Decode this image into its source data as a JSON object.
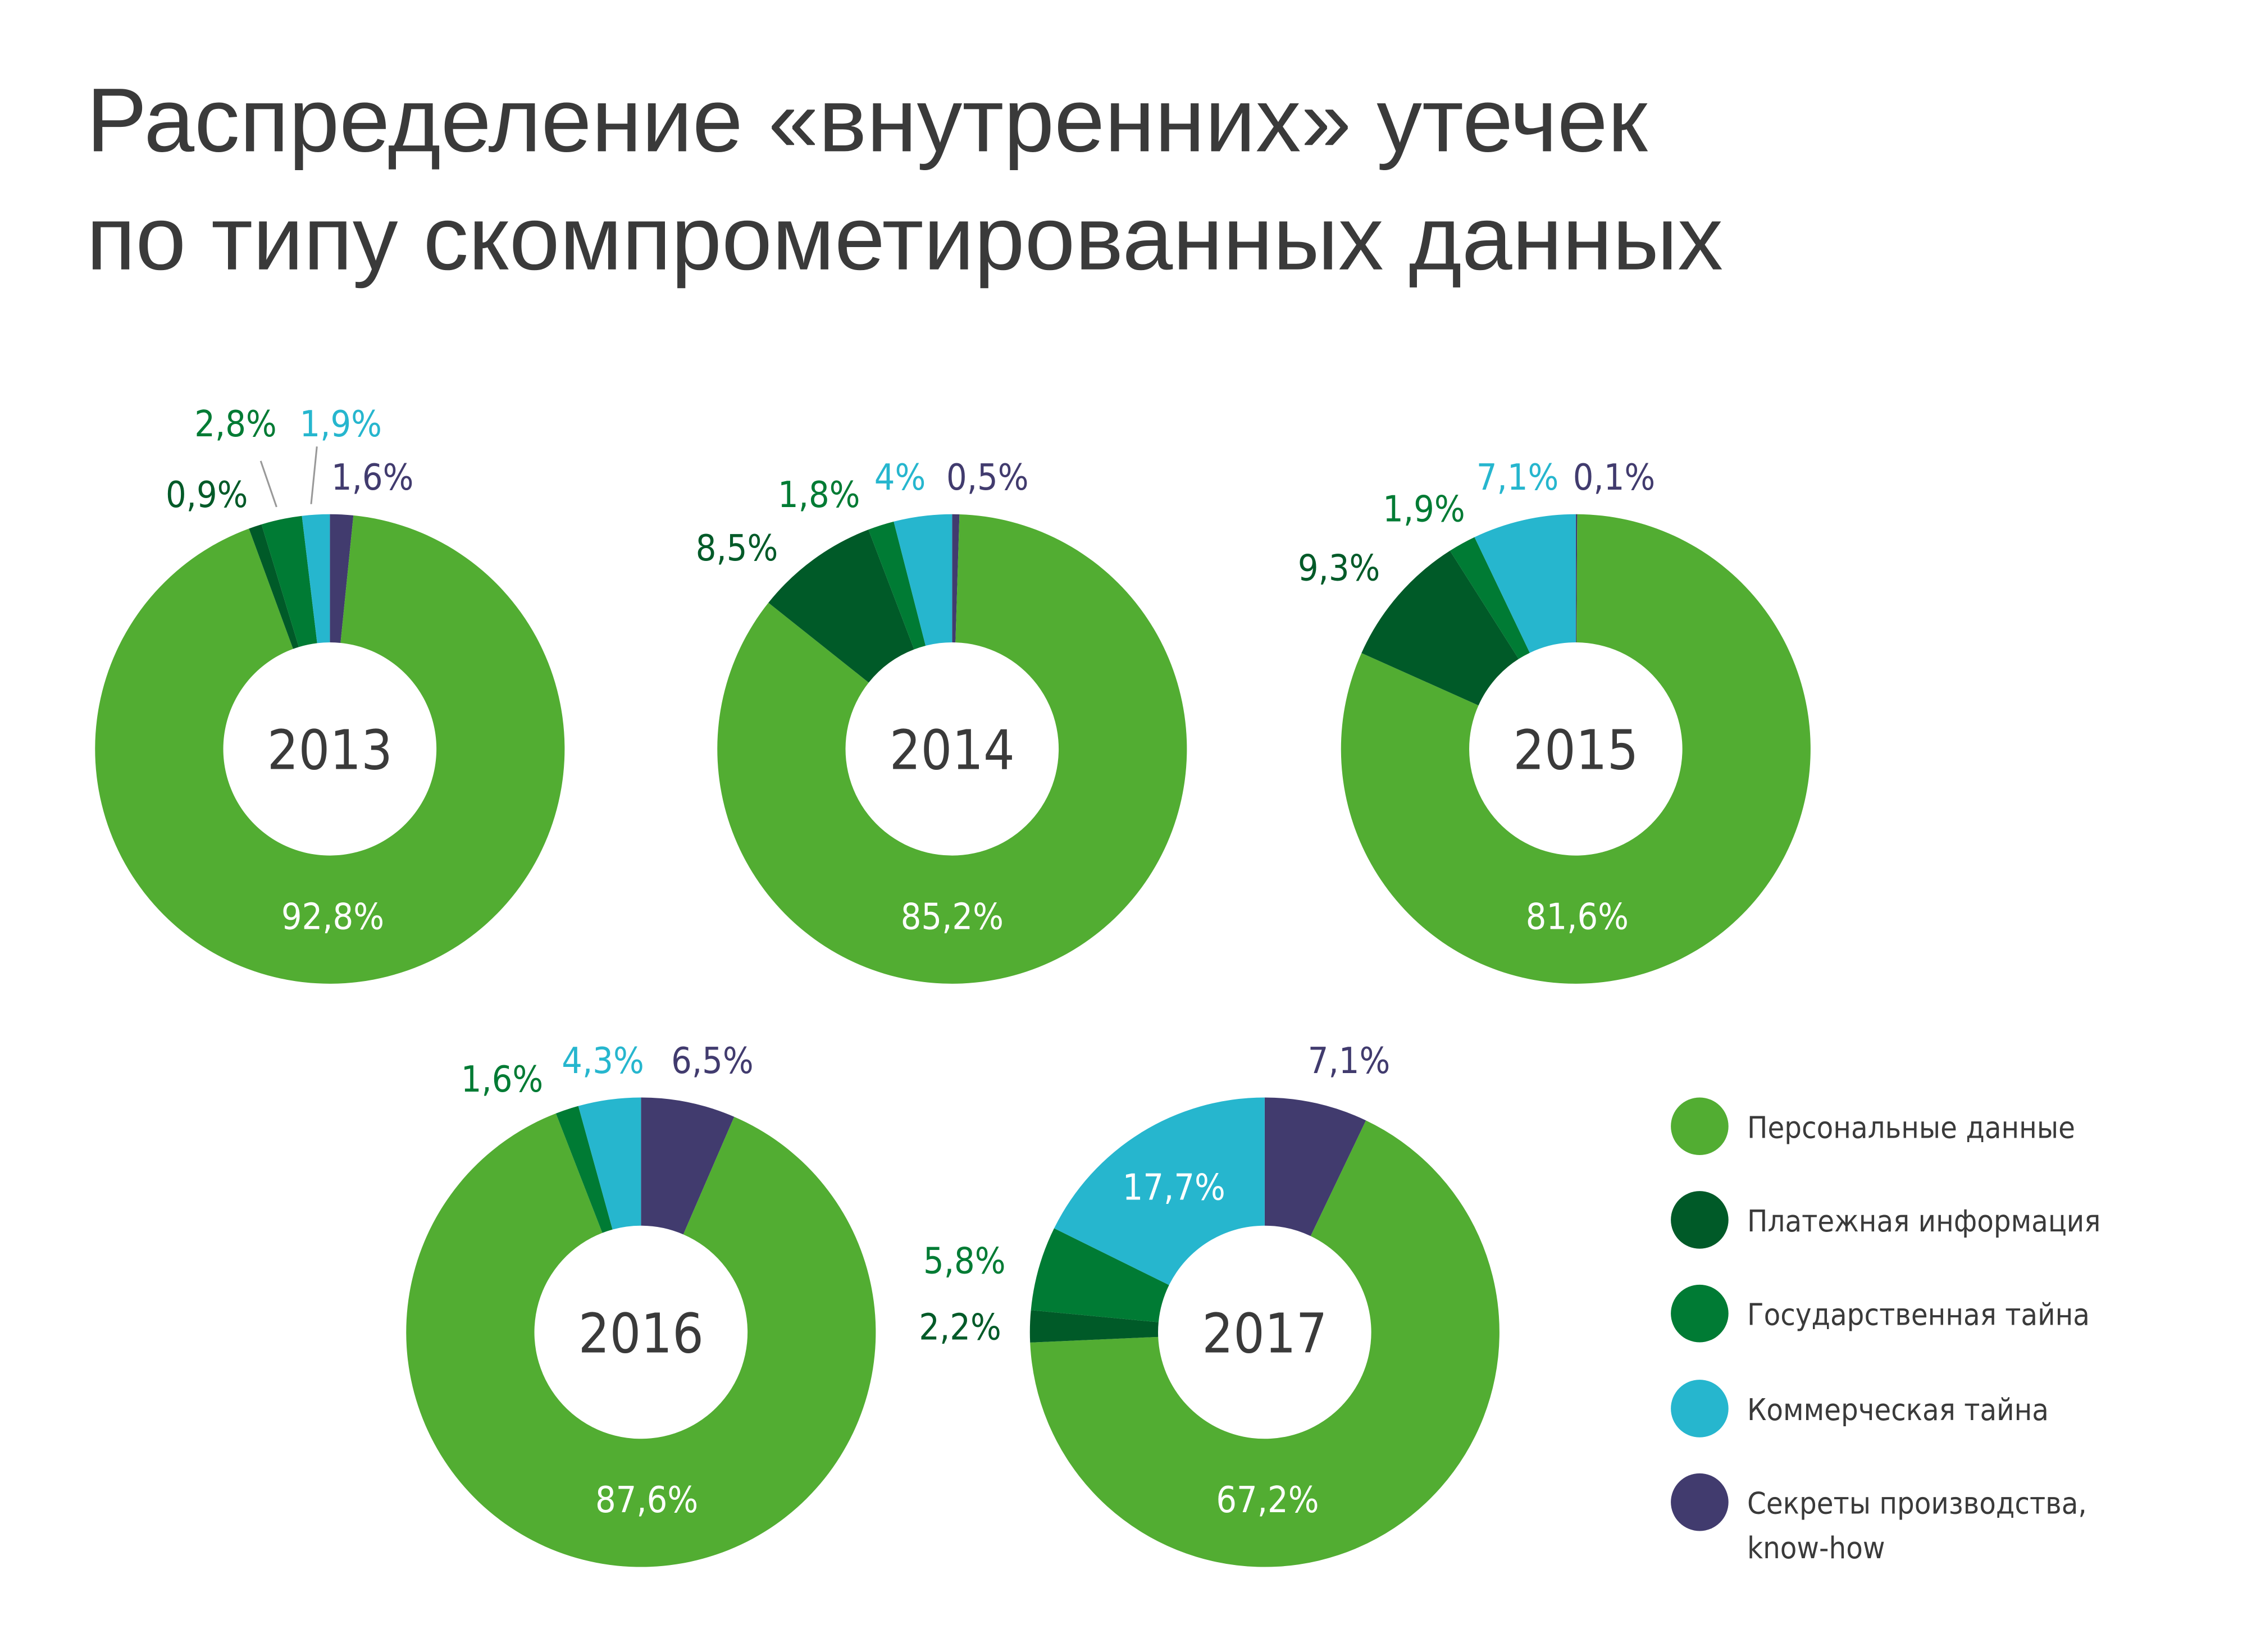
{
  "chart_data": {
    "type": "pie",
    "variant": "donut",
    "title": [
      "Распределение «внутренних» утечек",
      "по типу скомпрометированных данных"
    ],
    "categories": [
      "Персональные данные",
      "Платежная информация",
      "Государственная тайна",
      "Коммерческая тайна",
      "Секреты производства, know-how"
    ],
    "legend": {
      "placement": "bottom-right",
      "items": [
        "Персональные данные",
        "Платежная информация",
        "Государственная тайна",
        "Коммерческая тайна",
        [
          "Секреты производства,",
          "know-how"
        ]
      ]
    },
    "colors": {
      "personal": "#52ad32",
      "payment": "#005a28",
      "state": "#007b34",
      "commercial": "#26b6ce",
      "secrets": "#413b6e"
    },
    "charts": [
      {
        "year": "2013",
        "values": {
          "personal": 92.8,
          "payment": 0.9,
          "state": 2.8,
          "commercial": 1.9,
          "secrets": 1.6
        },
        "labels": {
          "personal": "92,8%",
          "payment": "0,9%",
          "state": "2,8%",
          "commercial": "1,9%",
          "secrets": "1,6%"
        }
      },
      {
        "year": "2014",
        "values": {
          "personal": 85.2,
          "payment": 8.5,
          "state": 1.8,
          "commercial": 4,
          "secrets": 0.5
        },
        "labels": {
          "personal": "85,2%",
          "payment": "8,5%",
          "state": "1,8%",
          "commercial": "4%",
          "secrets": "0,5%"
        }
      },
      {
        "year": "2015",
        "values": {
          "personal": 81.6,
          "payment": 9.3,
          "state": 1.9,
          "commercial": 7.1,
          "secrets": 0.1
        },
        "labels": {
          "personal": "81,6%",
          "payment": "9,3%",
          "state": "1,9%",
          "commercial": "7,1%",
          "secrets": "0,1%"
        }
      },
      {
        "year": "2016",
        "values": {
          "personal": 87.6,
          "payment": 0,
          "state": 1.6,
          "commercial": 4.3,
          "secrets": 6.5
        },
        "labels": {
          "personal": "87,6%",
          "state": "1,6%",
          "commercial": "4,3%",
          "secrets": "6,5%"
        }
      },
      {
        "year": "2017",
        "values": {
          "personal": 67.2,
          "payment": 2.2,
          "state": 5.8,
          "commercial": 17.7,
          "secrets": 7.1
        },
        "labels": {
          "personal": "67,2%",
          "payment": "2,2%",
          "state": "5,8%",
          "commercial": "17,7%",
          "secrets": "7,1%"
        }
      }
    ]
  }
}
